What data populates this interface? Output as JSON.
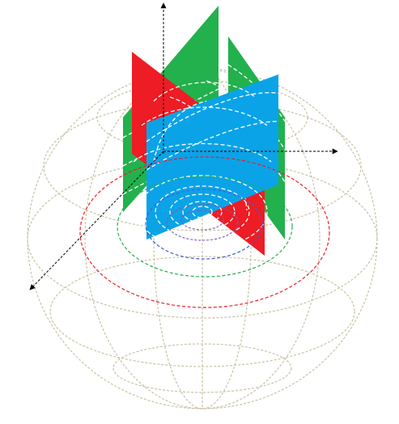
{
  "diagram": {
    "colors": {
      "background": "#ffffff",
      "sphere_wireframe": "#c9c2a3",
      "axis": "#000000",
      "red_plane": "#ee1c24",
      "green_plane": "#22b14c",
      "blue_plane": "#0aa3e8",
      "red_circle": "#ee1c24",
      "green_circle": "#22b14c",
      "blue_circle": "#3d5fd8",
      "inner_rings": "#ffffff",
      "small_rings": "#7d5ab3"
    },
    "elements": [
      "sphere-wireframe",
      "x-axis",
      "y-axis",
      "z-axis",
      "green-plane-back",
      "red-plane",
      "blue-plane",
      "green-plane-front",
      "red-latitude-circle",
      "green-latitude-circle",
      "blue-latitude-circle"
    ]
  }
}
